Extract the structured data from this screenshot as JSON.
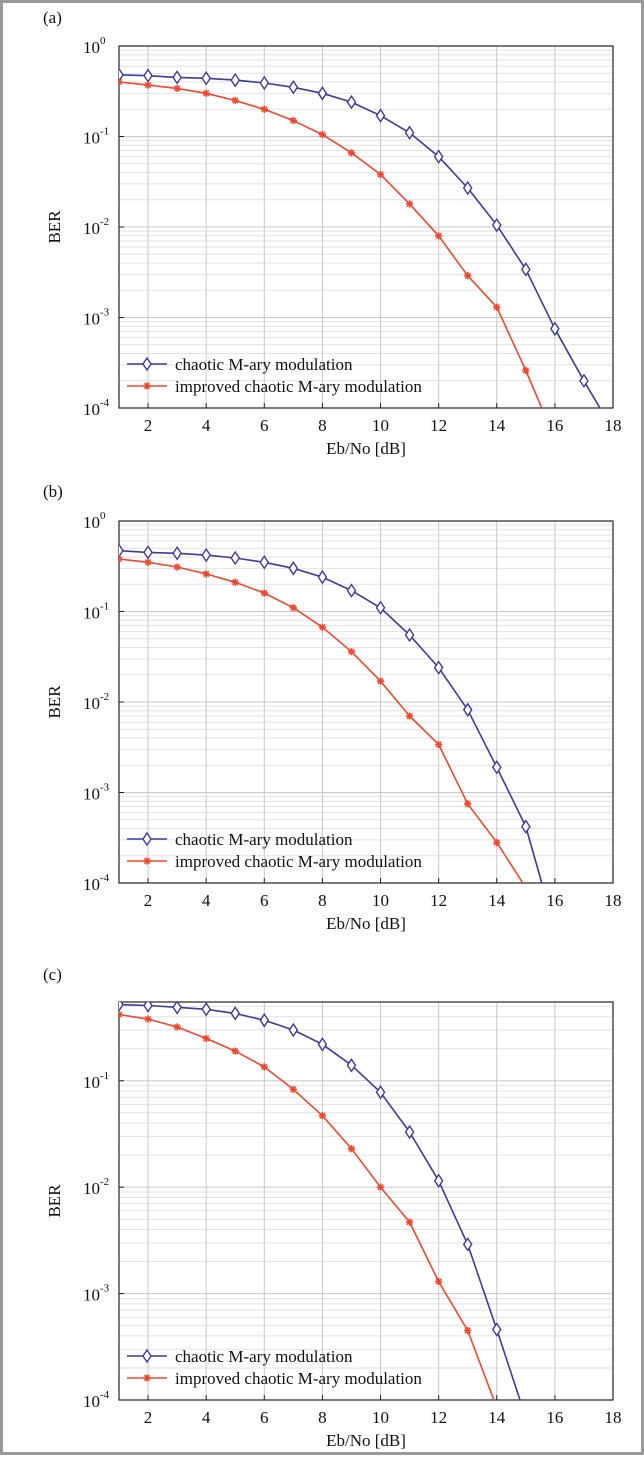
{
  "colors": {
    "series1": "#3b3b9e",
    "series2": "#f2462e"
  },
  "chart_data": [
    {
      "type": "line",
      "panel_label": "(a)",
      "xlabel": "Eb/No [dB]",
      "ylabel": "BER",
      "xlim": [
        1,
        18
      ],
      "ylim": [
        0.0001,
        1
      ],
      "yscale": "log",
      "grid": true,
      "legend_position": "bottom-left",
      "x_ticks": [
        2,
        4,
        6,
        8,
        10,
        12,
        14,
        16,
        18
      ],
      "y_ticks": [
        {
          "value": 1,
          "base": "10",
          "exp": "0"
        },
        {
          "value": 0.1,
          "base": "10",
          "exp": "-1"
        },
        {
          "value": 0.01,
          "base": "10",
          "exp": "-2"
        },
        {
          "value": 0.001,
          "base": "10",
          "exp": "-3"
        },
        {
          "value": 0.0001,
          "base": "10",
          "exp": "-4"
        }
      ],
      "series": [
        {
          "name": "chaotic M-ary modulation",
          "marker": "diamond",
          "x": [
            1,
            2,
            3,
            4,
            5,
            6,
            7,
            8,
            9,
            10,
            11,
            12,
            13,
            14,
            15,
            16,
            17,
            17.55
          ],
          "y": [
            0.48,
            0.47,
            0.45,
            0.44,
            0.42,
            0.39,
            0.35,
            0.3,
            0.24,
            0.17,
            0.11,
            0.06,
            0.027,
            0.0105,
            0.0034,
            0.00075,
            0.0002,
            0.0001
          ]
        },
        {
          "name": "improved chaotic M-ary modulation",
          "marker": "star",
          "x": [
            1,
            2,
            3,
            4,
            5,
            6,
            7,
            8,
            9,
            10,
            11,
            12,
            13,
            14,
            15,
            15.55
          ],
          "y": [
            0.4,
            0.37,
            0.34,
            0.3,
            0.25,
            0.2,
            0.15,
            0.105,
            0.066,
            0.038,
            0.018,
            0.008,
            0.0029,
            0.0013,
            0.00026,
            0.0001
          ]
        }
      ]
    },
    {
      "type": "line",
      "panel_label": "(b)",
      "xlabel": "Eb/No [dB]",
      "ylabel": "BER",
      "xlim": [
        1,
        18
      ],
      "ylim": [
        0.0001,
        1
      ],
      "yscale": "log",
      "grid": true,
      "legend_position": "bottom-left",
      "x_ticks": [
        2,
        4,
        6,
        8,
        10,
        12,
        14,
        16,
        18
      ],
      "y_ticks": [
        {
          "value": 1,
          "base": "10",
          "exp": "0"
        },
        {
          "value": 0.1,
          "base": "10",
          "exp": "-1"
        },
        {
          "value": 0.01,
          "base": "10",
          "exp": "-2"
        },
        {
          "value": 0.001,
          "base": "10",
          "exp": "-3"
        },
        {
          "value": 0.0001,
          "base": "10",
          "exp": "-4"
        }
      ],
      "series": [
        {
          "name": "chaotic M-ary modulation",
          "marker": "diamond",
          "x": [
            1,
            2,
            3,
            4,
            5,
            6,
            7,
            8,
            9,
            10,
            11,
            12,
            13,
            14,
            15,
            15.55
          ],
          "y": [
            0.47,
            0.45,
            0.44,
            0.42,
            0.39,
            0.35,
            0.3,
            0.24,
            0.17,
            0.11,
            0.055,
            0.024,
            0.0082,
            0.0019,
            0.00042,
            0.0001
          ]
        },
        {
          "name": "improved chaotic M-ary modulation",
          "marker": "star",
          "x": [
            1,
            2,
            3,
            4,
            5,
            6,
            7,
            8,
            9,
            10,
            11,
            12,
            13,
            14,
            14.9
          ],
          "y": [
            0.38,
            0.35,
            0.31,
            0.26,
            0.21,
            0.16,
            0.11,
            0.067,
            0.036,
            0.017,
            0.007,
            0.0034,
            0.00075,
            0.00028,
            0.0001
          ]
        }
      ]
    },
    {
      "type": "line",
      "panel_label": "(c)",
      "xlabel": "Eb/No [dB]",
      "ylabel": "BER",
      "xlim": [
        1,
        18
      ],
      "ylim": [
        0.0001,
        0.55
      ],
      "yscale": "log",
      "grid": true,
      "legend_position": "bottom-left",
      "x_ticks": [
        2,
        4,
        6,
        8,
        10,
        12,
        14,
        16,
        18
      ],
      "y_ticks": [
        {
          "value": 0.1,
          "base": "10",
          "exp": "-1"
        },
        {
          "value": 0.01,
          "base": "10",
          "exp": "-2"
        },
        {
          "value": 0.001,
          "base": "10",
          "exp": "-3"
        },
        {
          "value": 0.0001,
          "base": "10",
          "exp": "-4"
        }
      ],
      "series": [
        {
          "name": "chaotic M-ary modulation",
          "marker": "diamond",
          "x": [
            1,
            2,
            3,
            4,
            5,
            6,
            7,
            8,
            9,
            10,
            11,
            12,
            13,
            14,
            14.8
          ],
          "y": [
            0.52,
            0.51,
            0.49,
            0.47,
            0.43,
            0.37,
            0.3,
            0.22,
            0.14,
            0.078,
            0.033,
            0.0115,
            0.0029,
            0.00046,
            0.0001
          ]
        },
        {
          "name": "improved chaotic M-ary modulation",
          "marker": "star",
          "x": [
            1,
            2,
            3,
            4,
            5,
            6,
            7,
            8,
            9,
            10,
            11,
            12,
            13,
            13.9
          ],
          "y": [
            0.42,
            0.38,
            0.32,
            0.25,
            0.19,
            0.135,
            0.083,
            0.047,
            0.023,
            0.01,
            0.0047,
            0.0013,
            0.00045,
            0.0001
          ]
        }
      ]
    }
  ]
}
